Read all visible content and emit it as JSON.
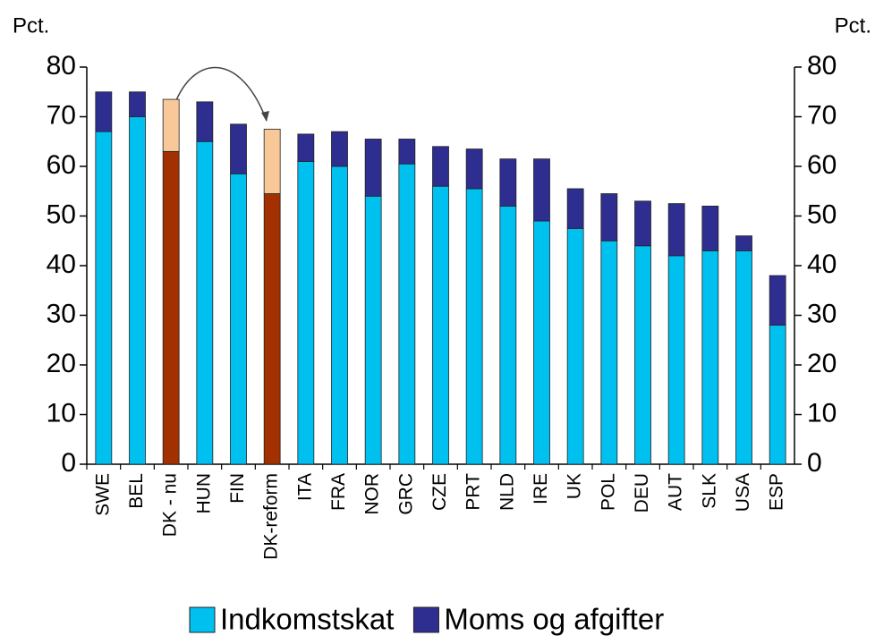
{
  "chart_data": {
    "type": "stacked_bar",
    "y_label": "Pct.",
    "y2_label": "Pct.",
    "categories": [
      "SWE",
      "BEL",
      "DK - nu",
      "HUN",
      "FIN",
      "DK-reform",
      "ITA",
      "FRA",
      "NOR",
      "GRC",
      "CZE",
      "PRT",
      "NLD",
      "IRE",
      "UK",
      "POL",
      "DEU",
      "AUT",
      "SLK",
      "USA",
      "ESP"
    ],
    "series": [
      {
        "name": "Indkomstskat",
        "color": "#00c0f0",
        "values": [
          67,
          70,
          63,
          65,
          58.5,
          54.5,
          61,
          60,
          54,
          60.5,
          56,
          55.5,
          52,
          49,
          47.5,
          45,
          44,
          42,
          43,
          43,
          28
        ],
        "colors": [
          "#00c0f0",
          "#00c0f0",
          "#a33000",
          "#00c0f0",
          "#00c0f0",
          "#a33000",
          "#00c0f0",
          "#00c0f0",
          "#00c0f0",
          "#00c0f0",
          "#00c0f0",
          "#00c0f0",
          "#00c0f0",
          "#00c0f0",
          "#00c0f0",
          "#00c0f0",
          "#00c0f0",
          "#00c0f0",
          "#00c0f0",
          "#00c0f0",
          "#00c0f0"
        ]
      },
      {
        "name": "Moms og afgifter",
        "color": "#2e2e90",
        "values": [
          8,
          5,
          10.5,
          8,
          10,
          13,
          5.5,
          7,
          11.5,
          5,
          8,
          8,
          9.5,
          12.5,
          8,
          9.5,
          9,
          10.5,
          9,
          3,
          10
        ],
        "colors": [
          "#2e2e90",
          "#2e2e90",
          "#f8c898",
          "#2e2e90",
          "#2e2e90",
          "#f8c898",
          "#2e2e90",
          "#2e2e90",
          "#2e2e90",
          "#2e2e90",
          "#2e2e90",
          "#2e2e90",
          "#2e2e90",
          "#2e2e90",
          "#2e2e90",
          "#2e2e90",
          "#2e2e90",
          "#2e2e90",
          "#2e2e90",
          "#2e2e90",
          "#2e2e90"
        ]
      }
    ],
    "ylim": [
      0,
      80
    ],
    "yticks": [
      0,
      10,
      20,
      30,
      40,
      50,
      60,
      70,
      80
    ],
    "y2lim": [
      0,
      80
    ],
    "y2ticks": [
      0,
      10,
      20,
      30,
      40,
      50,
      60,
      70,
      80
    ],
    "legend": "bottom"
  }
}
